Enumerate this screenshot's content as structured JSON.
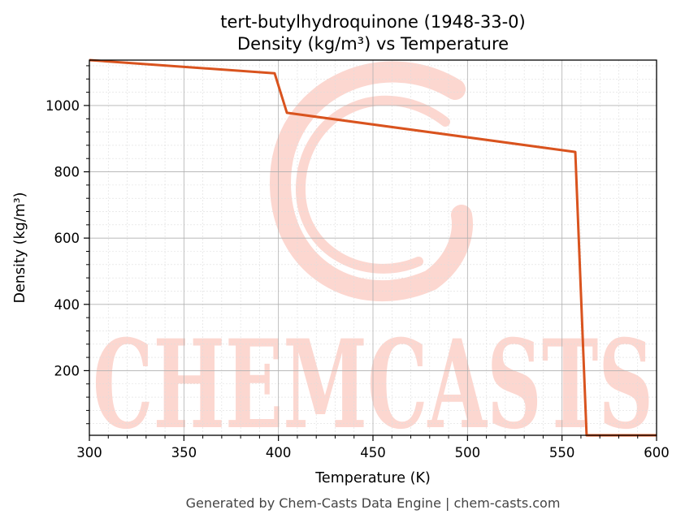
{
  "chart_data": {
    "type": "line",
    "title": "tert-butylhydroquinone (1948-33-0)",
    "subtitle": "Density (kg/m³) vs Temperature",
    "xlabel": "Temperature (K)",
    "ylabel": "Density (kg/m³)",
    "xlim": [
      300,
      600
    ],
    "ylim": [
      5,
      1137
    ],
    "xticks": [
      300,
      350,
      400,
      450,
      500,
      550,
      600
    ],
    "yticks": [
      200,
      400,
      600,
      800,
      1000
    ],
    "grid": true,
    "series": [
      {
        "color": "#d9531e",
        "x": [
          300,
          398,
          404.5,
          557,
          563,
          600
        ],
        "y": [
          1137,
          1097,
          978,
          860,
          5,
          5
        ]
      }
    ]
  },
  "watermark": {
    "text": "CHEMCASTS",
    "color": "#fcd7d0"
  },
  "footer": "Generated by Chem-Casts Data Engine | chem-casts.com"
}
